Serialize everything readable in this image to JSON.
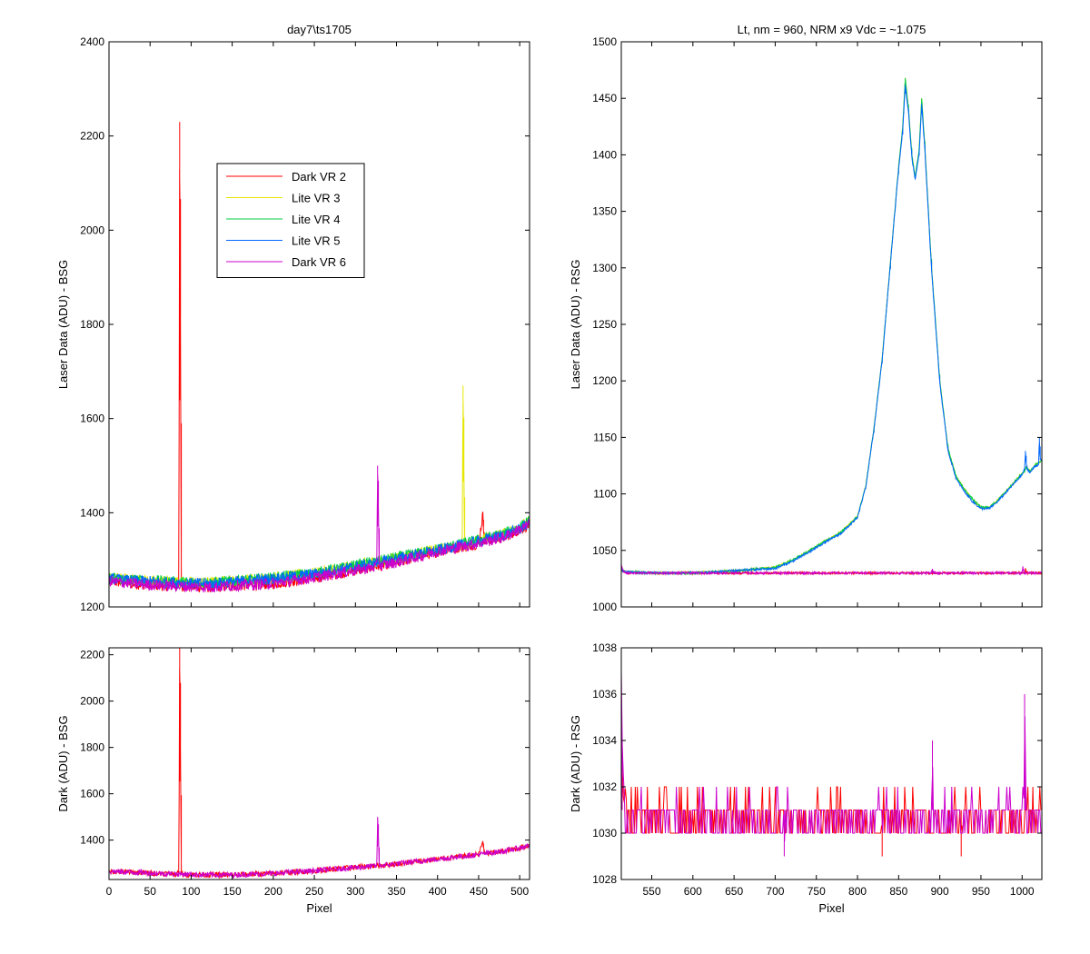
{
  "chart_data": [
    {
      "id": "bsg-laser",
      "type": "line",
      "title": "day7\\ts1705",
      "xlabel": "",
      "ylabel": "Laser Data (ADU) - BSG",
      "xlim": [
        0,
        512
      ],
      "ylim": [
        1200,
        2400
      ],
      "xticks": [
        0,
        50,
        100,
        150,
        200,
        250,
        300,
        350,
        400,
        450,
        500
      ],
      "yticks": [
        1200,
        1400,
        1600,
        1800,
        2000,
        2200,
        2400
      ],
      "show_xtick_labels": false,
      "grid": false,
      "legend": {
        "placement": "upper-left-center",
        "entries": [
          "Dark VR 2",
          "Lite VR 3",
          "Lite VR 4",
          "Lite VR 5",
          "Dark VR 6"
        ]
      },
      "series": [
        {
          "name": "Dark VR 2",
          "color": "#ff0000",
          "x": [
            0,
            25,
            50,
            75,
            85,
            86,
            87,
            88,
            95,
            125,
            150,
            200,
            250,
            300,
            350,
            400,
            450,
            455,
            456,
            457,
            480,
            500,
            512
          ],
          "y": [
            1255,
            1250,
            1247,
            1245,
            1245,
            2230,
            1820,
            1245,
            1243,
            1242,
            1245,
            1250,
            1262,
            1278,
            1295,
            1318,
            1335,
            1395,
            1370,
            1340,
            1348,
            1365,
            1375
          ]
        },
        {
          "name": "Lite VR 3",
          "color": "#e6e600",
          "x": [
            0,
            25,
            50,
            75,
            100,
            125,
            150,
            200,
            250,
            300,
            350,
            400,
            430,
            431,
            432,
            433,
            450,
            480,
            500,
            512
          ],
          "y": [
            1262,
            1258,
            1256,
            1254,
            1252,
            1252,
            1255,
            1262,
            1272,
            1288,
            1305,
            1322,
            1330,
            1670,
            1500,
            1332,
            1342,
            1355,
            1370,
            1382
          ]
        },
        {
          "name": "Lite VR 4",
          "color": "#00cc44",
          "x": [
            0,
            25,
            50,
            75,
            100,
            125,
            150,
            200,
            250,
            300,
            350,
            400,
            450,
            480,
            500,
            512
          ],
          "y": [
            1262,
            1258,
            1256,
            1254,
            1252,
            1252,
            1255,
            1262,
            1272,
            1288,
            1305,
            1322,
            1342,
            1355,
            1370,
            1382
          ]
        },
        {
          "name": "Lite VR 5",
          "color": "#0066ff",
          "x": [
            0,
            25,
            50,
            75,
            100,
            125,
            150,
            200,
            250,
            300,
            350,
            400,
            450,
            480,
            500,
            512
          ],
          "y": [
            1260,
            1256,
            1254,
            1252,
            1250,
            1250,
            1253,
            1260,
            1270,
            1285,
            1302,
            1320,
            1340,
            1352,
            1366,
            1378
          ]
        },
        {
          "name": "Dark VR 6",
          "color": "#cc00cc",
          "x": [
            0,
            25,
            50,
            75,
            100,
            125,
            150,
            200,
            250,
            300,
            326,
            327,
            328,
            329,
            350,
            400,
            450,
            480,
            500,
            512
          ],
          "y": [
            1255,
            1250,
            1247,
            1245,
            1243,
            1242,
            1245,
            1250,
            1262,
            1278,
            1285,
            1500,
            1420,
            1287,
            1295,
            1318,
            1335,
            1348,
            1365,
            1375
          ]
        }
      ]
    },
    {
      "id": "rsg-laser",
      "type": "line",
      "title": "Lt, nm = 960, NRM x9 Vdc = ~1.075",
      "xlabel": "",
      "ylabel": "Laser Data (ADU) - RSG",
      "xlim": [
        513,
        1024
      ],
      "ylim": [
        1000,
        1500
      ],
      "xticks": [
        550,
        600,
        650,
        700,
        750,
        800,
        850,
        900,
        950,
        1000
      ],
      "yticks": [
        1000,
        1050,
        1100,
        1150,
        1200,
        1250,
        1300,
        1350,
        1400,
        1450,
        1500
      ],
      "show_xtick_labels": false,
      "grid": false,
      "series": [
        {
          "name": "Dark VR 2",
          "color": "#ff0000",
          "x": [
            513,
            515,
            520,
            600,
            700,
            800,
            900,
            1000,
            1003,
            1004,
            1005,
            1024
          ],
          "y": [
            1033,
            1031,
            1030,
            1030,
            1030,
            1030,
            1030,
            1030,
            1030,
            1034,
            1030,
            1030
          ]
        },
        {
          "name": "Lite VR 3",
          "color": "#e6e600",
          "x": [
            513,
            515,
            520,
            550,
            600,
            650,
            700,
            720,
            740,
            760,
            780,
            800,
            810,
            820,
            830,
            840,
            850,
            855,
            858,
            862,
            866,
            870,
            875,
            878,
            882,
            890,
            900,
            910,
            920,
            930,
            940,
            950,
            960,
            970,
            980,
            990,
            1000,
            1003,
            1005,
            1010,
            1015,
            1020,
            1024
          ],
          "y": [
            1036,
            1032,
            1031,
            1030,
            1030,
            1032,
            1035,
            1041,
            1049,
            1058,
            1066,
            1080,
            1107,
            1158,
            1220,
            1305,
            1390,
            1425,
            1468,
            1440,
            1400,
            1380,
            1405,
            1450,
            1405,
            1300,
            1200,
            1140,
            1115,
            1104,
            1095,
            1088,
            1088,
            1094,
            1102,
            1110,
            1118,
            1120,
            1124,
            1120,
            1125,
            1128,
            1130
          ]
        },
        {
          "name": "Lite VR 4",
          "color": "#00cc44",
          "x": [
            513,
            515,
            520,
            550,
            600,
            650,
            700,
            720,
            740,
            760,
            780,
            800,
            810,
            820,
            830,
            840,
            850,
            855,
            858,
            862,
            866,
            870,
            875,
            878,
            882,
            890,
            900,
            910,
            920,
            930,
            940,
            950,
            960,
            970,
            980,
            990,
            1000,
            1003,
            1005,
            1010,
            1015,
            1020,
            1024
          ],
          "y": [
            1036,
            1032,
            1031,
            1030,
            1030,
            1032,
            1035,
            1041,
            1049,
            1058,
            1066,
            1080,
            1107,
            1158,
            1220,
            1305,
            1390,
            1425,
            1468,
            1440,
            1400,
            1380,
            1405,
            1450,
            1405,
            1300,
            1200,
            1140,
            1115,
            1104,
            1095,
            1088,
            1088,
            1094,
            1102,
            1110,
            1118,
            1120,
            1124,
            1120,
            1125,
            1128,
            1130
          ]
        },
        {
          "name": "Lite VR 5",
          "color": "#0066ff",
          "x": [
            513,
            515,
            520,
            550,
            600,
            650,
            700,
            720,
            740,
            760,
            780,
            800,
            810,
            820,
            830,
            840,
            850,
            855,
            858,
            862,
            866,
            870,
            875,
            878,
            882,
            890,
            900,
            910,
            920,
            930,
            940,
            950,
            960,
            970,
            980,
            990,
            1000,
            1003,
            1004,
            1005,
            1006,
            1010,
            1015,
            1020,
            1021,
            1022,
            1024
          ],
          "y": [
            1035,
            1031,
            1031,
            1030,
            1030,
            1032,
            1034,
            1040,
            1048,
            1057,
            1065,
            1079,
            1106,
            1157,
            1219,
            1304,
            1388,
            1422,
            1462,
            1437,
            1398,
            1378,
            1402,
            1445,
            1402,
            1298,
            1198,
            1138,
            1113,
            1102,
            1093,
            1087,
            1087,
            1093,
            1101,
            1109,
            1117,
            1122,
            1138,
            1127,
            1122,
            1119,
            1124,
            1126,
            1150,
            1130,
            1129
          ]
        },
        {
          "name": "Dark VR 6",
          "color": "#cc00cc",
          "x": [
            513,
            514,
            516,
            520,
            600,
            700,
            800,
            890,
            891,
            892,
            900,
            1000,
            1001,
            1002,
            1003,
            1024
          ],
          "y": [
            1037,
            1034,
            1031,
            1030,
            1030,
            1030,
            1030,
            1030,
            1033,
            1030,
            1030,
            1030,
            1036,
            1030,
            1030,
            1030
          ]
        }
      ]
    },
    {
      "id": "bsg-dark",
      "type": "line",
      "title": "",
      "xlabel": "Pixel",
      "ylabel": "Dark (ADU) - BSG",
      "xlim": [
        0,
        512
      ],
      "ylim": [
        1230,
        2230
      ],
      "xticks": [
        0,
        50,
        100,
        150,
        200,
        250,
        300,
        350,
        400,
        450,
        500
      ],
      "yticks": [
        1400,
        1600,
        1800,
        2000,
        2200
      ],
      "show_xtick_labels": true,
      "grid": false,
      "series": [
        {
          "name": "Dark VR 2",
          "color": "#ff0000",
          "x": [
            0,
            25,
            50,
            75,
            85,
            86,
            87,
            88,
            95,
            125,
            150,
            200,
            250,
            300,
            350,
            400,
            450,
            455,
            456,
            457,
            480,
            500,
            512
          ],
          "y": [
            1265,
            1262,
            1258,
            1255,
            1255,
            2250,
            1820,
            1255,
            1252,
            1250,
            1250,
            1256,
            1268,
            1282,
            1298,
            1318,
            1338,
            1395,
            1370,
            1340,
            1352,
            1366,
            1378
          ]
        },
        {
          "name": "Dark VR 6",
          "color": "#cc00cc",
          "x": [
            0,
            25,
            50,
            75,
            100,
            125,
            150,
            200,
            250,
            300,
            326,
            327,
            328,
            329,
            350,
            400,
            450,
            480,
            500,
            512
          ],
          "y": [
            1265,
            1262,
            1258,
            1255,
            1252,
            1250,
            1250,
            1256,
            1268,
            1282,
            1288,
            1500,
            1420,
            1290,
            1298,
            1318,
            1338,
            1352,
            1366,
            1378
          ]
        }
      ]
    },
    {
      "id": "rsg-dark",
      "type": "line",
      "title": "",
      "xlabel": "Pixel",
      "ylabel": "Dark (ADU) - RSG",
      "xlim": [
        513,
        1024
      ],
      "ylim": [
        1028,
        1038
      ],
      "xticks": [
        550,
        600,
        650,
        700,
        750,
        800,
        850,
        900,
        950,
        1000
      ],
      "yticks": [
        1028,
        1030,
        1032,
        1034,
        1036,
        1038
      ],
      "show_xtick_labels": true,
      "grid": false,
      "series": [
        {
          "name": "Dark VR 2",
          "color": "#ff0000",
          "x": [
            513,
            514,
            516,
            518,
            520,
            525,
            600,
            700,
            710,
            711,
            712,
            800,
            829,
            830,
            831,
            900,
            925,
            926,
            927,
            1000,
            1020,
            1024
          ],
          "y": [
            1036,
            1033,
            1031,
            1032,
            1031,
            1031,
            1031,
            1031,
            1031,
            1031,
            1031,
            1031,
            1031,
            1029,
            1031,
            1031,
            1031,
            1029,
            1031,
            1031,
            1031,
            1031
          ]
        },
        {
          "name": "Dark VR 6",
          "color": "#cc00cc",
          "x": [
            513,
            514,
            516,
            518,
            520,
            525,
            600,
            700,
            710,
            711,
            712,
            800,
            890,
            891,
            892,
            900,
            1000,
            1002,
            1003,
            1004,
            1005,
            1024
          ],
          "y": [
            1037,
            1034,
            1032,
            1031,
            1031,
            1031,
            1031,
            1031,
            1031,
            1029,
            1031,
            1031,
            1031,
            1034,
            1031,
            1031,
            1031,
            1031,
            1036,
            1033,
            1031,
            1031
          ]
        }
      ],
      "noise_band": [
        1030,
        1032
      ]
    }
  ]
}
